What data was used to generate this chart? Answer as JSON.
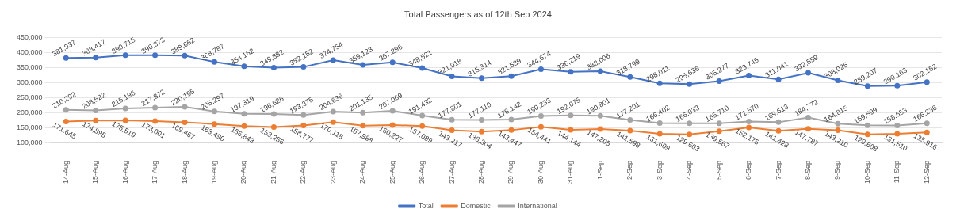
{
  "chart_data": {
    "type": "line",
    "title": "Total Passengers as of 12th Sep 2024",
    "categories": [
      "14-Aug",
      "15-Aug",
      "16-Aug",
      "17-Aug",
      "18-Aug",
      "19-Aug",
      "20-Aug",
      "21-Aug",
      "22-Aug",
      "23-Aug",
      "24-Aug",
      "25-Aug",
      "26-Aug",
      "27-Aug",
      "28-Aug",
      "29-Aug",
      "30-Aug",
      "31-Aug",
      "1-Sep",
      "2-Sep",
      "3-Sep",
      "4-Sep",
      "5-Sep",
      "6-Sep",
      "7-Sep",
      "8-Sep",
      "9-Sep",
      "10-Sep",
      "11-Sep",
      "12-Sep"
    ],
    "series": [
      {
        "name": "Total",
        "color": "#4472c4",
        "values": [
          381937,
          383417,
          390715,
          390873,
          389662,
          368787,
          354162,
          349882,
          352152,
          374754,
          359123,
          367296,
          348521,
          321018,
          315314,
          321589,
          344674,
          336219,
          338006,
          318799,
          298011,
          295636,
          305277,
          323745,
          311041,
          332559,
          308025,
          289207,
          290163,
          302152
        ],
        "value_labels": [
          "381,937",
          "383,417",
          "390,715",
          "390,873",
          "389,662",
          "368,787",
          "354,162",
          "349,882",
          "352,152",
          "374,754",
          "359,123",
          "367,296",
          "348,521",
          "321,018",
          "315,314",
          "321,589",
          "344,674",
          "336,219",
          "338,006",
          "318,799",
          "298,011",
          "295,636",
          "305,277",
          "323,745",
          "311,041",
          "332,559",
          "308,025",
          "289,207",
          "290,163",
          "302,152"
        ]
      },
      {
        "name": "Domestic",
        "color": "#ed7d31",
        "values": [
          171645,
          174895,
          175519,
          173001,
          169467,
          163490,
          156843,
          153256,
          158777,
          170118,
          157988,
          160227,
          157089,
          143217,
          138304,
          143447,
          154441,
          144144,
          147205,
          141598,
          131609,
          129603,
          139567,
          152175,
          141428,
          147787,
          143210,
          129608,
          131510,
          135916
        ],
        "value_labels": [
          "171,645",
          "174,895",
          "175,519",
          "173,001",
          "169,467",
          "163,490",
          "156,843",
          "153,256",
          "158,777",
          "170,118",
          "157,988",
          "160,227",
          "157,089",
          "143,217",
          "138,304",
          "143,447",
          "154,441",
          "144,144",
          "147,205",
          "141,598",
          "131,609",
          "129,603",
          "139,567",
          "152,175",
          "141,428",
          "147,787",
          "143,210",
          "129,608",
          "131,510",
          "135,916"
        ]
      },
      {
        "name": "International",
        "color": "#a5a5a5",
        "values": [
          210292,
          208522,
          215196,
          217872,
          220195,
          205297,
          197319,
          196626,
          193375,
          204636,
          201135,
          207069,
          191432,
          177801,
          177110,
          178142,
          190233,
          192075,
          190801,
          177201,
          166402,
          166033,
          165710,
          171570,
          169613,
          184772,
          164815,
          159599,
          158653,
          166236
        ],
        "value_labels": [
          "210,292",
          "208,522",
          "215,196",
          "217,872",
          "220,195",
          "205,297",
          "197,319",
          "196,626",
          "193,375",
          "204,636",
          "201,135",
          "207,069",
          "191,432",
          "177,801",
          "177,110",
          "178,142",
          "190,233",
          "192,075",
          "190,801",
          "177,201",
          "166,402",
          "166,033",
          "165,710",
          "171,570",
          "169,613",
          "184,772",
          "164,815",
          "159,599",
          "158,653",
          "166,236"
        ]
      }
    ],
    "ylim": [
      100000,
      450000
    ],
    "yticks": [
      {
        "value": 100000,
        "label": "100,000"
      },
      {
        "value": 150000,
        "label": "150,000"
      },
      {
        "value": 200000,
        "label": "200,000"
      },
      {
        "value": 250000,
        "label": "250,000"
      },
      {
        "value": 300000,
        "label": "300,000"
      },
      {
        "value": 350000,
        "label": "350,000"
      },
      {
        "value": 400000,
        "label": "400,000"
      },
      {
        "value": 450000,
        "label": "450,000"
      }
    ],
    "grid": "y",
    "legend": "bottom",
    "marker": "circle",
    "line_style": "solid"
  }
}
